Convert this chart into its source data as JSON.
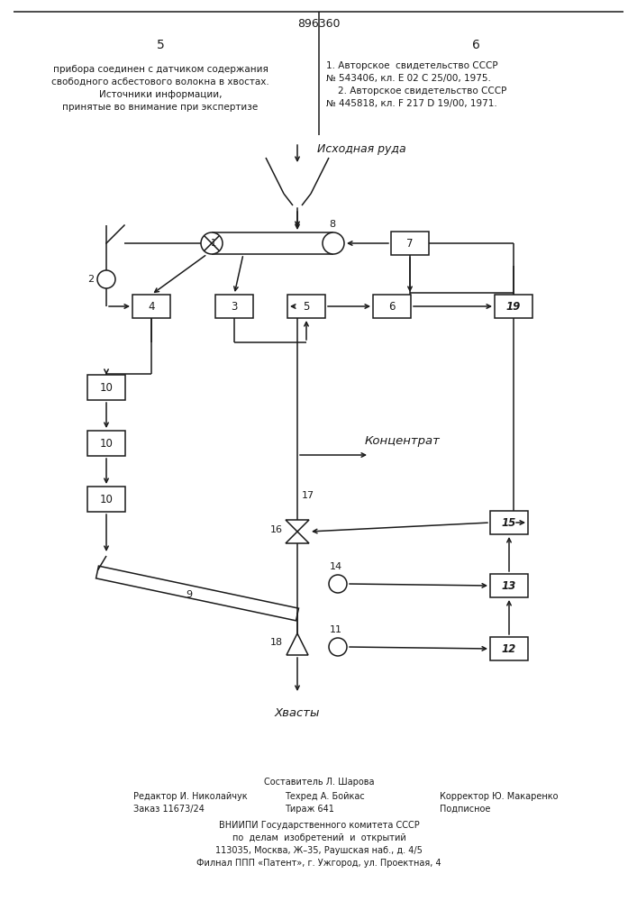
{
  "page_title": "896360",
  "col_left": "5",
  "col_right": "6",
  "text_left_1": "прибора соединен с датчиком содержания",
  "text_left_2": "свободного асбестового волокна в хвостах.",
  "text_left_3": "Источники информации,",
  "text_left_4": "принятые во внимание при экспертизе",
  "text_right_1": "1. Авторское  свидетельство СССР",
  "text_right_2": "№ 543406, кл. Е 02 С 25/00, 1975.",
  "text_right_3": "    2. Авторское свидетельство СССР",
  "text_right_4": "№ 445818, кл. F 217 D 19/00, 1971.",
  "label_ishodnaya": "Исходная руда",
  "label_koncentrat": "Концентрат",
  "label_khvosty": "Хвасты",
  "footer_composer": "Составитель Л. Шарова",
  "footer_editor": "Редактор И. Николайчук",
  "footer_techred": "Техред А. Бойкас",
  "footer_corrector": "Корректор Ю. Макаренко",
  "footer_order": "Заказ 11673/24",
  "footer_tirazh": "Тираж 641",
  "footer_podpisnoe": "Подписное",
  "footer_line1": "ВНИИПИ Государственного комитета СССР",
  "footer_line2": "по  делам  изобретений  и  открытий",
  "footer_line3": "113035, Москва, Ж–35, Раушская наб., д. 4/5",
  "footer_line4": "Филнал ППП «Патент», г. Ужгород, ул. Проектная, 4",
  "bg_color": "#ffffff",
  "line_color": "#1a1a1a"
}
